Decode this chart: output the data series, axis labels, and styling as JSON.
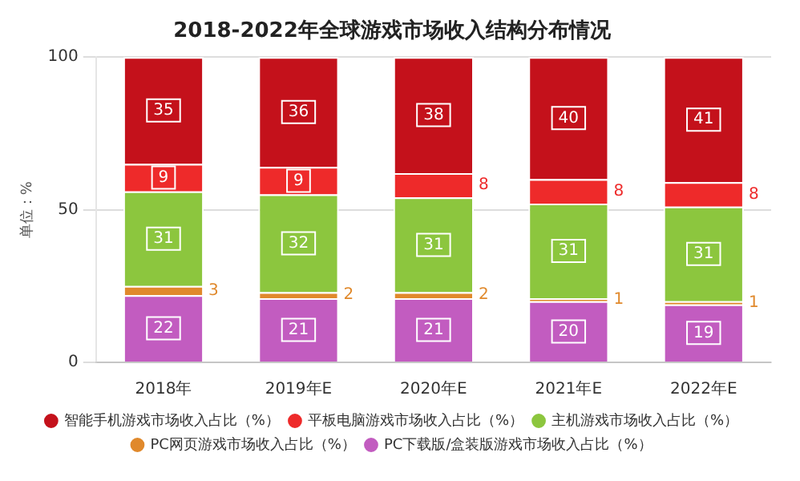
{
  "chart_data": {
    "type": "bar",
    "title": "2018-2022年全球游戏市场收入结构分布情况",
    "ylabel": "单位：%",
    "categories": [
      "2018年",
      "2019年E",
      "2020年E",
      "2021年E",
      "2022年E"
    ],
    "stacked": true,
    "ylim": [
      0,
      100
    ],
    "yticks": [
      0,
      50,
      100
    ],
    "grid": "y",
    "legend": "bottom",
    "data_labels": true,
    "series": [
      {
        "name": "PC下载版/盒装版游戏市场收入占比（%）",
        "color": "#c25cc0",
        "values": [
          22,
          21,
          21,
          20,
          19
        ]
      },
      {
        "name": "PC网页游戏市场收入占比（%）",
        "color": "#e0892c",
        "values": [
          3,
          2,
          2,
          1,
          1
        ]
      },
      {
        "name": "主机游戏市场收入占比（%）",
        "color": "#8cc63e",
        "values": [
          31,
          32,
          31,
          31,
          31
        ]
      },
      {
        "name": "平板电脑游戏市场收入占比（%）",
        "color": "#ee2a2a",
        "values": [
          9,
          9,
          8,
          8,
          8
        ]
      },
      {
        "name": "智能手机游戏市场收入占比（%）",
        "color": "#c4111b",
        "values": [
          35,
          36,
          38,
          40,
          41
        ]
      }
    ]
  }
}
